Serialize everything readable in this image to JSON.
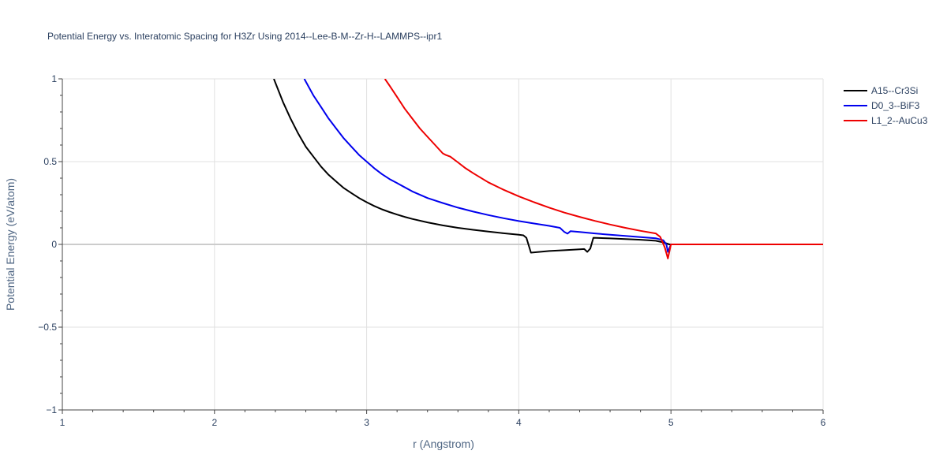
{
  "chart_data": {
    "type": "line",
    "title": "Potential Energy vs. Interatomic Spacing for H3Zr Using 2014--Lee-B-M--Zr-H--LAMMPS--ipr1",
    "xlabel": "r (Angstrom)",
    "ylabel": "Potential Energy (eV/atom)",
    "xlim": [
      1,
      6
    ],
    "ylim": [
      -1,
      1
    ],
    "x_ticks": [
      1,
      2,
      3,
      4,
      5,
      6
    ],
    "x_tick_labels": [
      "1",
      "2",
      "3",
      "4",
      "5",
      "6"
    ],
    "y_ticks": [
      -1,
      -0.5,
      0,
      0.5,
      1
    ],
    "y_tick_labels": [
      "−1",
      "−0.5",
      "0",
      "0.5",
      "1"
    ],
    "grid": true,
    "legend_position": "top-right",
    "series": [
      {
        "name": "A15--Cr3Si",
        "color": "#000000",
        "points": [
          [
            2.39,
            1.0
          ],
          [
            2.45,
            0.86
          ],
          [
            2.5,
            0.76
          ],
          [
            2.55,
            0.67
          ],
          [
            2.6,
            0.59
          ],
          [
            2.65,
            0.53
          ],
          [
            2.7,
            0.47
          ],
          [
            2.75,
            0.42
          ],
          [
            2.8,
            0.38
          ],
          [
            2.85,
            0.34
          ],
          [
            2.9,
            0.31
          ],
          [
            2.95,
            0.28
          ],
          [
            3.0,
            0.255
          ],
          [
            3.05,
            0.232
          ],
          [
            3.1,
            0.212
          ],
          [
            3.15,
            0.195
          ],
          [
            3.2,
            0.18
          ],
          [
            3.25,
            0.166
          ],
          [
            3.3,
            0.154
          ],
          [
            3.4,
            0.133
          ],
          [
            3.5,
            0.115
          ],
          [
            3.6,
            0.1
          ],
          [
            3.7,
            0.088
          ],
          [
            3.8,
            0.077
          ],
          [
            3.9,
            0.067
          ],
          [
            4.0,
            0.058
          ],
          [
            4.03,
            0.055
          ],
          [
            4.05,
            0.04
          ],
          [
            4.08,
            -0.05
          ],
          [
            4.2,
            -0.04
          ],
          [
            4.3,
            -0.035
          ],
          [
            4.4,
            -0.03
          ],
          [
            4.43,
            -0.028
          ],
          [
            4.45,
            -0.045
          ],
          [
            4.47,
            -0.025
          ],
          [
            4.49,
            0.04
          ],
          [
            4.6,
            0.036
          ],
          [
            4.7,
            0.032
          ],
          [
            4.8,
            0.028
          ],
          [
            4.9,
            0.022
          ],
          [
            4.95,
            0.012
          ],
          [
            4.99,
            0.0
          ],
          [
            5.5,
            0.0
          ],
          [
            6.0,
            0.0
          ]
        ]
      },
      {
        "name": "D0_3--BiF3",
        "color": "#0000ee",
        "points": [
          [
            2.59,
            1.0
          ],
          [
            2.65,
            0.9
          ],
          [
            2.7,
            0.83
          ],
          [
            2.75,
            0.76
          ],
          [
            2.8,
            0.7
          ],
          [
            2.85,
            0.64
          ],
          [
            2.9,
            0.59
          ],
          [
            2.95,
            0.54
          ],
          [
            3.0,
            0.5
          ],
          [
            3.05,
            0.46
          ],
          [
            3.1,
            0.425
          ],
          [
            3.15,
            0.395
          ],
          [
            3.2,
            0.37
          ],
          [
            3.3,
            0.32
          ],
          [
            3.4,
            0.28
          ],
          [
            3.5,
            0.25
          ],
          [
            3.6,
            0.222
          ],
          [
            3.7,
            0.198
          ],
          [
            3.8,
            0.177
          ],
          [
            3.9,
            0.158
          ],
          [
            4.0,
            0.141
          ],
          [
            4.1,
            0.126
          ],
          [
            4.2,
            0.112
          ],
          [
            4.27,
            0.1
          ],
          [
            4.3,
            0.075
          ],
          [
            4.32,
            0.065
          ],
          [
            4.34,
            0.08
          ],
          [
            4.4,
            0.075
          ],
          [
            4.5,
            0.066
          ],
          [
            4.6,
            0.058
          ],
          [
            4.7,
            0.051
          ],
          [
            4.8,
            0.044
          ],
          [
            4.9,
            0.037
          ],
          [
            4.95,
            0.025
          ],
          [
            4.97,
            0.0
          ],
          [
            4.98,
            -0.045
          ],
          [
            5.0,
            0.0
          ],
          [
            5.5,
            0.0
          ],
          [
            6.0,
            0.0
          ]
        ]
      },
      {
        "name": "L1_2--AuCu3",
        "color": "#ee0000",
        "points": [
          [
            3.12,
            1.0
          ],
          [
            3.15,
            0.96
          ],
          [
            3.2,
            0.89
          ],
          [
            3.25,
            0.82
          ],
          [
            3.3,
            0.76
          ],
          [
            3.35,
            0.7
          ],
          [
            3.4,
            0.65
          ],
          [
            3.45,
            0.6
          ],
          [
            3.5,
            0.55
          ],
          [
            3.52,
            0.54
          ],
          [
            3.55,
            0.53
          ],
          [
            3.6,
            0.495
          ],
          [
            3.65,
            0.46
          ],
          [
            3.7,
            0.43
          ],
          [
            3.8,
            0.375
          ],
          [
            3.9,
            0.33
          ],
          [
            4.0,
            0.29
          ],
          [
            4.1,
            0.255
          ],
          [
            4.2,
            0.222
          ],
          [
            4.3,
            0.192
          ],
          [
            4.4,
            0.166
          ],
          [
            4.5,
            0.142
          ],
          [
            4.6,
            0.12
          ],
          [
            4.7,
            0.1
          ],
          [
            4.8,
            0.082
          ],
          [
            4.9,
            0.066
          ],
          [
            4.93,
            0.045
          ],
          [
            4.96,
            -0.02
          ],
          [
            4.98,
            -0.085
          ],
          [
            5.0,
            0.0
          ],
          [
            5.5,
            0.0
          ],
          [
            6.0,
            0.0
          ]
        ]
      }
    ]
  }
}
